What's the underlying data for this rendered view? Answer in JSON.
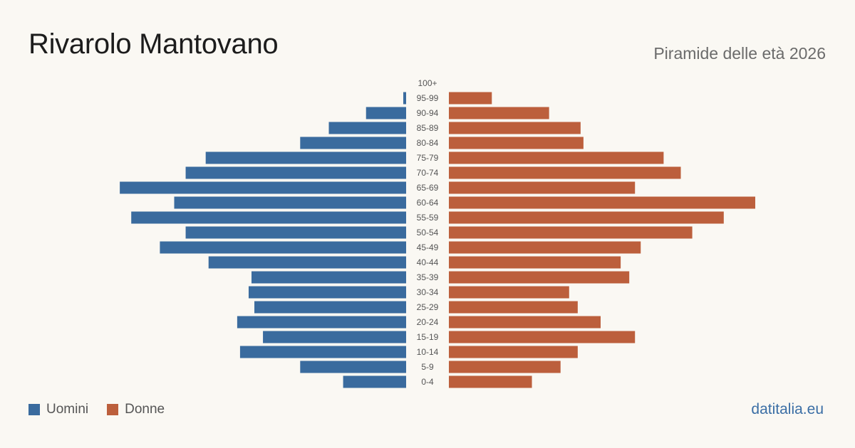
{
  "header": {
    "title": "Rivarolo Mantovano",
    "subtitle": "Piramide delle età 2026"
  },
  "legend": {
    "men_label": "Uomini",
    "women_label": "Donne"
  },
  "brand": "datitalia.eu",
  "colors": {
    "men": "#3a6b9e",
    "women": "#bc5f3c",
    "age_label": "#555555",
    "background": "#faf8f3"
  },
  "chart_data": {
    "type": "bar",
    "orientation": "horizontal-pyramid",
    "categories": [
      "100+",
      "95-99",
      "90-94",
      "85-89",
      "80-84",
      "75-79",
      "70-74",
      "65-69",
      "60-64",
      "55-59",
      "50-54",
      "45-49",
      "40-44",
      "35-39",
      "30-34",
      "25-29",
      "20-24",
      "15-19",
      "10-14",
      "5-9",
      "0-4"
    ],
    "series": [
      {
        "name": "Uomini",
        "values": [
          0,
          1,
          14,
          27,
          37,
          70,
          77,
          100,
          81,
          96,
          77,
          86,
          69,
          54,
          55,
          53,
          59,
          50,
          58,
          37,
          22
        ]
      },
      {
        "name": "Donne",
        "values": [
          0,
          15,
          35,
          46,
          47,
          75,
          81,
          65,
          107,
          96,
          85,
          67,
          60,
          63,
          42,
          45,
          53,
          65,
          45,
          39,
          29
        ]
      }
    ],
    "xlim": [
      0,
      107
    ],
    "grid": false,
    "legend_position": "bottom-left"
  }
}
